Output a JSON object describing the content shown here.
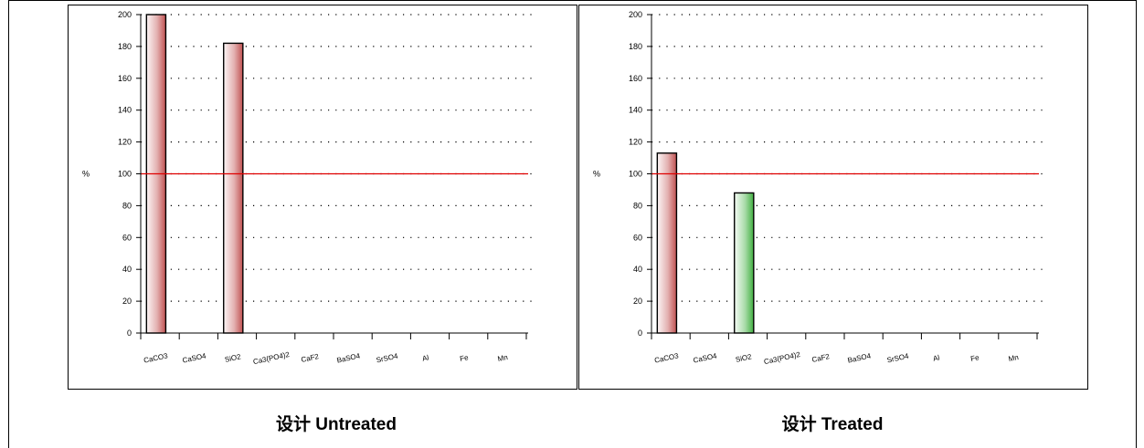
{
  "charts": [
    {
      "caption": "设计 Untreated",
      "chart_data": {
        "type": "bar",
        "ylabel": "%",
        "ylim": [
          0,
          200
        ],
        "yticks": [
          0,
          20,
          40,
          60,
          80,
          100,
          120,
          140,
          160,
          180,
          200
        ],
        "grid": "dotted horizontal",
        "categories": [
          "CaCO3",
          "CaSO4",
          "SiO2",
          "Ca3(PO4)2",
          "CaF2",
          "BaSO4",
          "SrSO4",
          "Al",
          "Fe",
          "Mn"
        ],
        "values": [
          200,
          0,
          182,
          0,
          0,
          0,
          0,
          0,
          0,
          0
        ],
        "bar_colors": [
          "#c05050",
          "#c05050",
          "#c05050",
          "#c05050",
          "#c05050",
          "#c05050",
          "#c05050",
          "#c05050",
          "#c05050",
          "#c05050"
        ],
        "reference_line": 100,
        "reference_color": "#e00000"
      }
    },
    {
      "caption": "设计 Treated",
      "chart_data": {
        "type": "bar",
        "ylabel": "%",
        "ylim": [
          0,
          200
        ],
        "yticks": [
          0,
          20,
          40,
          60,
          80,
          100,
          120,
          140,
          160,
          180,
          200
        ],
        "grid": "dotted horizontal",
        "categories": [
          "CaCO3",
          "CaSO4",
          "SiO2",
          "Ca3(PO4)2",
          "CaF2",
          "BaSO4",
          "SrSO4",
          "Al",
          "Fe",
          "Mn"
        ],
        "values": [
          113,
          0,
          88,
          0,
          0,
          0,
          0,
          0,
          0,
          0
        ],
        "bar_colors": [
          "#c05050",
          "#c05050",
          "#40b040",
          "#c05050",
          "#c05050",
          "#c05050",
          "#c05050",
          "#c05050",
          "#c05050",
          "#c05050"
        ],
        "reference_line": 100,
        "reference_color": "#e00000"
      }
    }
  ]
}
